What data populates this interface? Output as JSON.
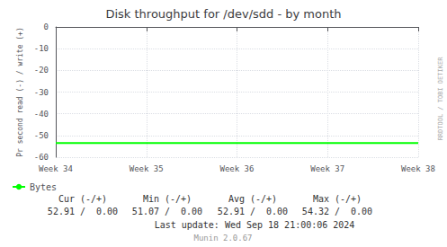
{
  "chart_data": {
    "type": "line",
    "title": "Disk throughput for /dev/sdd - by month",
    "ylabel": "Pr second read (-) / write (+)",
    "categories": [
      "Week 34",
      "Week 35",
      "Week 36",
      "Week 37",
      "Week 38"
    ],
    "series": [
      {
        "name": "Bytes",
        "color": "#00ff00",
        "values": [
          -53.5,
          -53.5,
          -53.5,
          -53.5,
          -53.5
        ]
      }
    ],
    "ylim": [
      -60.0,
      0.0
    ],
    "yticks": [
      0,
      -10,
      -20,
      -30,
      -40,
      -50,
      -60
    ],
    "grid": true,
    "legend": "lower-left",
    "stats_headers": [
      "Cur (-/+)",
      "Min (-/+)",
      "Avg (-/+)",
      "Max (-/+)"
    ],
    "stats_values": [
      "52.91 /  0.00",
      "51.07 /  0.00",
      "52.91 /  0.00",
      "54.32 /  0.00"
    ],
    "annotations": [
      "Last update: Wed Sep 18 21:00:06 2024",
      "Munin 2.0.67",
      "RRDTOOL / TOBI OETIKER"
    ]
  }
}
